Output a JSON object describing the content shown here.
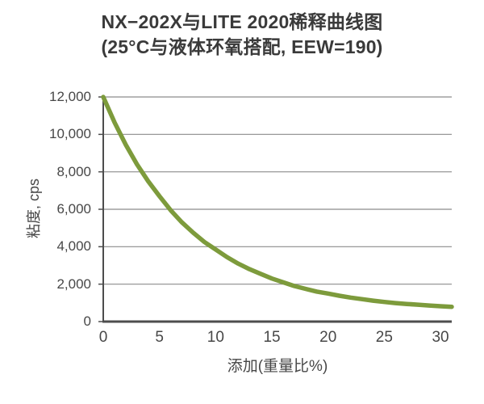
{
  "chart_data": {
    "type": "line",
    "title": "NX−202X与LITE 2020稀释曲线图",
    "subtitle": "(25°C与液体环氧搭配, EEW=190)",
    "xlabel": "添加(重量比%)",
    "ylabel": "粘度, cps",
    "series": [
      {
        "name": "NX−202X",
        "x": [
          0,
          1,
          2,
          3,
          4,
          5,
          6,
          7,
          8,
          9,
          10,
          11,
          12,
          13,
          14,
          15,
          16,
          17,
          18,
          19,
          20,
          21,
          22,
          23,
          24,
          25,
          26,
          27,
          28,
          29,
          30,
          31
        ],
        "y": [
          12000,
          10650,
          9450,
          8400,
          7500,
          6700,
          5950,
          5300,
          4750,
          4250,
          3850,
          3450,
          3100,
          2800,
          2550,
          2300,
          2100,
          1900,
          1750,
          1600,
          1500,
          1380,
          1280,
          1200,
          1120,
          1050,
          990,
          940,
          900,
          860,
          820,
          790
        ]
      }
    ],
    "xticks": [
      0,
      5,
      10,
      15,
      20,
      25,
      30
    ],
    "xtick_labels": [
      "0",
      "5",
      "10",
      "15",
      "20",
      "25",
      "30"
    ],
    "yticks": [
      0,
      2000,
      4000,
      6000,
      8000,
      10000,
      12000
    ],
    "ytick_labels": [
      "0",
      "2,000",
      "4,000",
      "6,000",
      "8,000",
      "10,000",
      "12,000"
    ],
    "xlim": [
      0,
      31
    ],
    "ylim": [
      0,
      12000
    ],
    "grid": "horizontal-only",
    "legend": "none",
    "line_color": "#7d9b3c",
    "grid_color": "#8c8c8c",
    "axis_color": "#4d4d4d",
    "text_color": "#474747",
    "title_color": "#3a3a3a"
  }
}
